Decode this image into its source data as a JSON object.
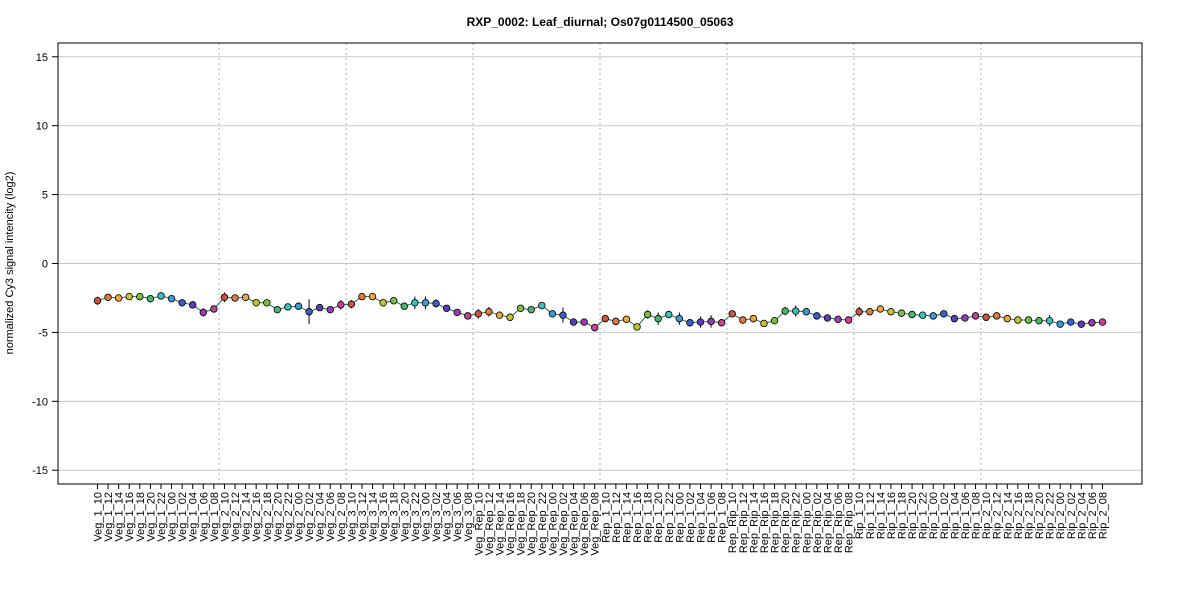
{
  "chart_data": {
    "type": "line",
    "title": "RXP_0002: Leaf_diurnal; Os07g0114500_05063",
    "xlabel": "",
    "ylabel": "normalized Cy3 signal intencity (log2)",
    "ylim": [
      -16,
      16
    ],
    "yticks": [
      -15,
      -10,
      -5,
      0,
      5,
      10,
      15
    ],
    "grid": true,
    "categories": [
      "Veg_1_10",
      "Veg_1_12",
      "Veg_1_14",
      "Veg_1_16",
      "Veg_1_18",
      "Veg_1_20",
      "Veg_1_22",
      "Veg_1_00",
      "Veg_1_02",
      "Veg_1_04",
      "Veg_1_06",
      "Veg_1_08",
      "Veg_2_10",
      "Veg_2_12",
      "Veg_2_14",
      "Veg_2_16",
      "Veg_2_18",
      "Veg_2_20",
      "Veg_2_22",
      "Veg_2_00",
      "Veg_2_02",
      "Veg_2_04",
      "Veg_2_06",
      "Veg_2_08",
      "Veg_3_10",
      "Veg_3_12",
      "Veg_3_14",
      "Veg_3_16",
      "Veg_3_18",
      "Veg_3_20",
      "Veg_3_22",
      "Veg_3_00",
      "Veg_3_02",
      "Veg_3_04",
      "Veg_3_06",
      "Veg_3_08",
      "Veg_Rep_10",
      "Veg_Rep_12",
      "Veg_Rep_14",
      "Veg_Rep_16",
      "Veg_Rep_18",
      "Veg_Rep_20",
      "Veg_Rep_22",
      "Veg_Rep_00",
      "Veg_Rep_02",
      "Veg_Rep_04",
      "Veg_Rep_06",
      "Veg_Rep_08",
      "Rep_1_10",
      "Rep_1_12",
      "Rep_1_14",
      "Rep_1_16",
      "Rep_1_18",
      "Rep_1_20",
      "Rep_1_22",
      "Rep_1_00",
      "Rep_1_02",
      "Rep_1_04",
      "Rep_1_06",
      "Rep_1_08",
      "Rep_Rip_10",
      "Rep_Rip_12",
      "Rep_Rip_14",
      "Rep_Rip_16",
      "Rep_Rip_18",
      "Rep_Rip_20",
      "Rep_Rip_22",
      "Rep_Rip_00",
      "Rep_Rip_02",
      "Rep_Rip_04",
      "Rep_Rip_06",
      "Rep_Rip_08",
      "Rip_1_10",
      "Rip_1_12",
      "Rip_1_14",
      "Rip_1_16",
      "Rip_1_18",
      "Rip_1_20",
      "Rip_1_22",
      "Rip_1_00",
      "Rip_1_02",
      "Rip_1_04",
      "Rip_1_06",
      "Rip_1_08",
      "Rip_2_10",
      "Rip_2_12",
      "Rip_2_14",
      "Rip_2_16",
      "Rip_2_18",
      "Rip_2_20",
      "Rip_2_22",
      "Rip_2_00",
      "Rip_2_02",
      "Rip_2_04",
      "Rip_2_06",
      "Rip_2_08"
    ],
    "values": [
      -2.7,
      -2.45,
      -2.5,
      -2.4,
      -2.4,
      -2.55,
      -2.35,
      -2.55,
      -2.85,
      -3.0,
      -3.55,
      -3.3,
      -2.45,
      -2.5,
      -2.45,
      -2.85,
      -2.85,
      -3.35,
      -3.15,
      -3.1,
      -3.5,
      -3.2,
      -3.35,
      -3.0,
      -2.95,
      -2.4,
      -2.4,
      -2.85,
      -2.7,
      -3.1,
      -2.85,
      -2.85,
      -2.9,
      -3.25,
      -3.55,
      -3.8,
      -3.65,
      -3.5,
      -3.75,
      -3.9,
      -3.25,
      -3.35,
      -3.05,
      -3.65,
      -3.75,
      -4.25,
      -4.25,
      -4.65,
      -4.0,
      -4.2,
      -4.05,
      -4.6,
      -3.7,
      -4.0,
      -3.7,
      -4.0,
      -4.3,
      -4.25,
      -4.2,
      -4.3,
      -3.65,
      -4.1,
      -4.0,
      -4.35,
      -4.15,
      -3.45,
      -3.45,
      -3.5,
      -3.8,
      -3.95,
      -4.05,
      -4.1,
      -3.5,
      -3.5,
      -3.3,
      -3.5,
      -3.6,
      -3.7,
      -3.75,
      -3.8,
      -3.65,
      -4.0,
      -3.95,
      -3.8,
      -3.9,
      -3.8,
      -4.0,
      -4.1,
      -4.1,
      -4.15,
      -4.15,
      -4.4,
      -4.25,
      -4.4,
      -4.3,
      -4.25
    ],
    "errors": [
      0.3,
      0.12,
      0.12,
      0.12,
      0.12,
      0.12,
      0.12,
      0.12,
      0.12,
      0.12,
      0.3,
      0.15,
      0.35,
      0.2,
      0.2,
      0.2,
      0.15,
      0.15,
      0.15,
      0.25,
      0.9,
      0.2,
      0.2,
      0.35,
      0.3,
      0.15,
      0.15,
      0.12,
      0.12,
      0.12,
      0.45,
      0.45,
      0.3,
      0.15,
      0.15,
      0.12,
      0.35,
      0.35,
      0.12,
      0.15,
      0.12,
      0.12,
      0.12,
      0.15,
      0.55,
      0.2,
      0.12,
      0.2,
      0.12,
      0.12,
      0.12,
      0.12,
      0.3,
      0.45,
      0.2,
      0.45,
      0.15,
      0.4,
      0.45,
      0.2,
      0.2,
      0.2,
      0.12,
      0.12,
      0.12,
      0.3,
      0.4,
      0.2,
      0.12,
      0.12,
      0.12,
      0.12,
      0.35,
      0.2,
      0.15,
      0.12,
      0.12,
      0.12,
      0.12,
      0.12,
      0.12,
      0.12,
      0.12,
      0.12,
      0.15,
      0.12,
      0.12,
      0.12,
      0.12,
      0.12,
      0.4,
      0.12,
      0.12,
      0.12,
      0.12,
      0.15
    ],
    "group_boundaries_after": [
      "Veg_1_08",
      "Veg_2_08",
      "Veg_3_08",
      "Veg_Rep_08",
      "Rep_1_08",
      "Rep_Rip_08",
      "Rip_1_08"
    ],
    "point_colors": [
      "#c8553d",
      "#e07b39",
      "#f0a73a",
      "#c6c42c",
      "#7ac142",
      "#49b86a",
      "#3cc0c0",
      "#3b9ad9",
      "#3a5fcc",
      "#5b3bbf",
      "#9b3ab8",
      "#c8409a"
    ]
  }
}
